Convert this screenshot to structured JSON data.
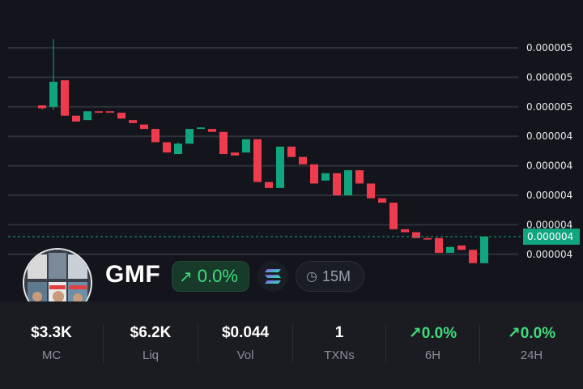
{
  "token": {
    "symbol": "GMF",
    "change": "0.0%",
    "change_icon": "arrow-up-right-icon",
    "chain_icon": "solana-logo-icon",
    "timeframe": "15M",
    "timeframe_icon": "clock-icon"
  },
  "colors": {
    "up": "#10a57e",
    "down": "#ee3b4e",
    "positive_text": "#3fdc7e",
    "background": "#14151c",
    "stats_background": "#1b1c21"
  },
  "stats": [
    {
      "value": "$3.3K",
      "label": "MC"
    },
    {
      "value": "$6.2K",
      "label": "Liq"
    },
    {
      "value": "$0.044",
      "label": "Vol"
    },
    {
      "value": "1",
      "label": "TXNs"
    },
    {
      "value": "0.0%",
      "label": "6H",
      "trend": "up"
    },
    {
      "value": "0.0%",
      "label": "24H",
      "trend": "up"
    }
  ],
  "chart_data": {
    "type": "candlestick",
    "y_tick_labels": [
      "0.000005",
      "0.000005",
      "0.000005",
      "0.000004",
      "0.000004",
      "0.000004",
      "0.000004",
      "0.000004"
    ],
    "y_ticks": [
      5.2e-06,
      5e-06,
      4.8e-06,
      4.6e-06,
      4.4e-06,
      4.2e-06,
      4e-06,
      3.8e-06
    ],
    "current_price_label": "0.000004",
    "current_price": 3.92e-06,
    "ylim": [
      3.4e-06,
      5.5e-06
    ],
    "grid": true,
    "candles": [
      {
        "o": 4.81e-06,
        "h": 4.81e-06,
        "l": 4.78e-06,
        "c": 4.79e-06
      },
      {
        "o": 4.8e-06,
        "h": 5.26e-06,
        "l": 4.78e-06,
        "c": 4.97e-06
      },
      {
        "o": 4.98e-06,
        "h": 4.98e-06,
        "l": 4.74e-06,
        "c": 4.74e-06
      },
      {
        "o": 4.74e-06,
        "h": 4.74e-06,
        "l": 4.7e-06,
        "c": 4.7e-06
      },
      {
        "o": 4.71e-06,
        "h": 4.77e-06,
        "l": 4.71e-06,
        "c": 4.77e-06
      },
      {
        "o": 4.77e-06,
        "h": 4.77e-06,
        "l": 4.76e-06,
        "c": 4.76e-06
      },
      {
        "o": 4.77e-06,
        "h": 4.77e-06,
        "l": 4.76e-06,
        "c": 4.76e-06
      },
      {
        "o": 4.76e-06,
        "h": 4.76e-06,
        "l": 4.72e-06,
        "c": 4.72e-06
      },
      {
        "o": 4.71e-06,
        "h": 4.71e-06,
        "l": 4.69e-06,
        "c": 4.69e-06
      },
      {
        "o": 4.68e-06,
        "h": 4.68e-06,
        "l": 4.65e-06,
        "c": 4.65e-06
      },
      {
        "o": 4.65e-06,
        "h": 4.65e-06,
        "l": 4.56e-06,
        "c": 4.56e-06
      },
      {
        "o": 4.56e-06,
        "h": 4.56e-06,
        "l": 4.49e-06,
        "c": 4.49e-06
      },
      {
        "o": 4.48e-06,
        "h": 4.56e-06,
        "l": 4.48e-06,
        "c": 4.55e-06
      },
      {
        "o": 4.55e-06,
        "h": 4.65e-06,
        "l": 4.55e-06,
        "c": 4.65e-06
      },
      {
        "o": 4.65e-06,
        "h": 4.66e-06,
        "l": 4.65e-06,
        "c": 4.66e-06
      },
      {
        "o": 4.65e-06,
        "h": 4.65e-06,
        "l": 4.63e-06,
        "c": 4.63e-06
      },
      {
        "o": 4.63e-06,
        "h": 4.63e-06,
        "l": 4.48e-06,
        "c": 4.48e-06
      },
      {
        "o": 4.49e-06,
        "h": 4.49e-06,
        "l": 4.47e-06,
        "c": 4.47e-06
      },
      {
        "o": 4.49e-06,
        "h": 4.58e-06,
        "l": 4.49e-06,
        "c": 4.58e-06
      },
      {
        "o": 4.58e-06,
        "h": 4.58e-06,
        "l": 4.29e-06,
        "c": 4.29e-06
      },
      {
        "o": 4.29e-06,
        "h": 4.29e-06,
        "l": 4.25e-06,
        "c": 4.25e-06
      },
      {
        "o": 4.25e-06,
        "h": 4.53e-06,
        "l": 4.25e-06,
        "c": 4.53e-06
      },
      {
        "o": 4.53e-06,
        "h": 4.53e-06,
        "l": 4.46e-06,
        "c": 4.46e-06
      },
      {
        "o": 4.46e-06,
        "h": 4.46e-06,
        "l": 4.41e-06,
        "c": 4.41e-06
      },
      {
        "o": 4.41e-06,
        "h": 4.41e-06,
        "l": 4.28e-06,
        "c": 4.28e-06
      },
      {
        "o": 4.3e-06,
        "h": 4.35e-06,
        "l": 4.3e-06,
        "c": 4.35e-06
      },
      {
        "o": 4.35e-06,
        "h": 4.35e-06,
        "l": 4.2e-06,
        "c": 4.2e-06
      },
      {
        "o": 4.2e-06,
        "h": 4.37e-06,
        "l": 4.2e-06,
        "c": 4.37e-06
      },
      {
        "o": 4.37e-06,
        "h": 4.37e-06,
        "l": 4.28e-06,
        "c": 4.28e-06
      },
      {
        "o": 4.28e-06,
        "h": 4.28e-06,
        "l": 4.18e-06,
        "c": 4.18e-06
      },
      {
        "o": 4.18e-06,
        "h": 4.18e-06,
        "l": 4.15e-06,
        "c": 4.15e-06
      },
      {
        "o": 4.15e-06,
        "h": 4.15e-06,
        "l": 3.97e-06,
        "c": 3.97e-06
      },
      {
        "o": 3.97e-06,
        "h": 3.97e-06,
        "l": 3.95e-06,
        "c": 3.95e-06
      },
      {
        "o": 3.95e-06,
        "h": 3.95e-06,
        "l": 3.91e-06,
        "c": 3.91e-06
      },
      {
        "o": 3.91e-06,
        "h": 3.91e-06,
        "l": 3.9e-06,
        "c": 3.9e-06
      },
      {
        "o": 3.91e-06,
        "h": 3.91e-06,
        "l": 3.81e-06,
        "c": 3.81e-06
      },
      {
        "o": 3.81e-06,
        "h": 3.85e-06,
        "l": 3.81e-06,
        "c": 3.85e-06
      },
      {
        "o": 3.86e-06,
        "h": 3.86e-06,
        "l": 3.83e-06,
        "c": 3.83e-06
      },
      {
        "o": 3.83e-06,
        "h": 3.83e-06,
        "l": 3.74e-06,
        "c": 3.74e-06
      },
      {
        "o": 3.74e-06,
        "h": 3.92e-06,
        "l": 3.74e-06,
        "c": 3.92e-06
      }
    ]
  }
}
